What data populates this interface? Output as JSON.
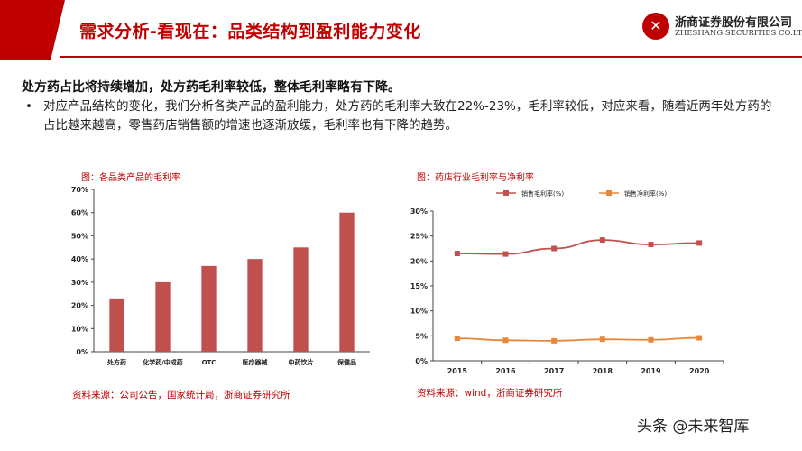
{
  "header": {
    "title": "需求分析-看现在：品类结构到盈利能力变化",
    "logo_cn": "浙商证券股份有限公司",
    "logo_en": "ZHESHANG SECURITIES CO.LTD"
  },
  "headline": "处方药占比将持续增加，处方药毛利率较低，整体毛利率略有下降。",
  "bullet": "对应产品结构的变化，我们分析各类产品的盈利能力，处方药的毛利率大致在22%-23%，毛利率较低，对应来看，随着近两年处方药的占比越来越高，零售药店销售额的增速也逐渐放缓，毛利率也有下降的趋势。",
  "left_chart": {
    "caption": "图：各品类产品的毛利率",
    "source": "资料来源：公司公告，国家统计局，浙商证券研究所"
  },
  "right_chart": {
    "caption": "图：药店行业毛利率与净利率",
    "source": "资料来源：wind，浙商证券研究所"
  },
  "watermark": "头条 @未来智库",
  "chart_data": [
    {
      "type": "bar",
      "title": "图：各品类产品的毛利率",
      "categories": [
        "处方药",
        "化学药/中成药",
        "OTC",
        "医疗器械",
        "中药饮片",
        "保健品"
      ],
      "values": [
        23,
        30,
        37,
        40,
        45,
        60
      ],
      "yticks": [
        "0%",
        "10%",
        "20%",
        "30%",
        "40%",
        "50%",
        "60%",
        "70%"
      ],
      "ylim": [
        0,
        70
      ],
      "color": "#c0504d"
    },
    {
      "type": "line",
      "title": "图：药店行业毛利率与净利率",
      "x": [
        "2015",
        "2016",
        "2017",
        "2018",
        "2019",
        "2020"
      ],
      "series": [
        {
          "name": "销售毛利率(%)",
          "values": [
            21.5,
            21.4,
            22.5,
            24.2,
            23.3,
            23.6
          ],
          "color": "#c0504d"
        },
        {
          "name": "销售净利率(%)",
          "values": [
            4.5,
            4.1,
            4.0,
            4.3,
            4.2,
            4.6
          ],
          "color": "#e8873a"
        }
      ],
      "yticks": [
        "0%",
        "5%",
        "10%",
        "15%",
        "20%",
        "25%",
        "30%"
      ],
      "ylim": [
        0,
        30
      ],
      "legend": "top"
    }
  ]
}
